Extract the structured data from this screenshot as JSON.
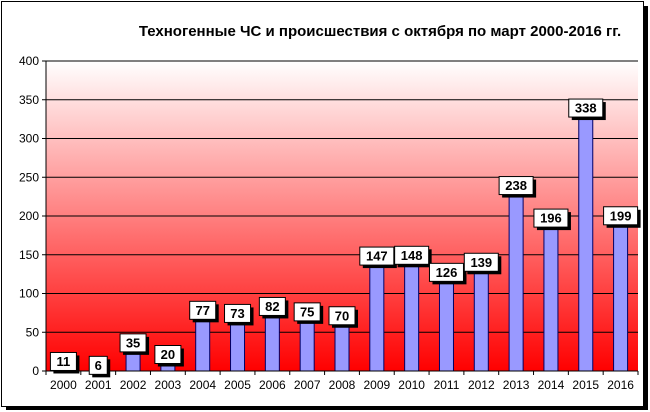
{
  "chart_data": {
    "type": "bar",
    "title": "Техногенные ЧС и происшествия с октября по март 2000-2016 гг.",
    "xlabel": "",
    "ylabel": "",
    "categories": [
      "2000",
      "2001",
      "2002",
      "2003",
      "2004",
      "2005",
      "2006",
      "2007",
      "2008",
      "2009",
      "2010",
      "2011",
      "2012",
      "2013",
      "2014",
      "2015",
      "2016"
    ],
    "values": [
      11,
      6,
      35,
      20,
      77,
      73,
      82,
      75,
      70,
      147,
      148,
      126,
      139,
      238,
      196,
      338,
      199
    ],
    "ylim": [
      0,
      400
    ],
    "yticks": [
      0,
      50,
      100,
      150,
      200,
      250,
      300,
      350,
      400
    ],
    "grid": true,
    "legend": "none",
    "colors": {
      "bar_fill": "#9999ff",
      "bar_edge": "#000066",
      "plot_top": "#ffffff",
      "plot_bottom": "#ff0000",
      "label_bg": "#ffffff"
    }
  }
}
